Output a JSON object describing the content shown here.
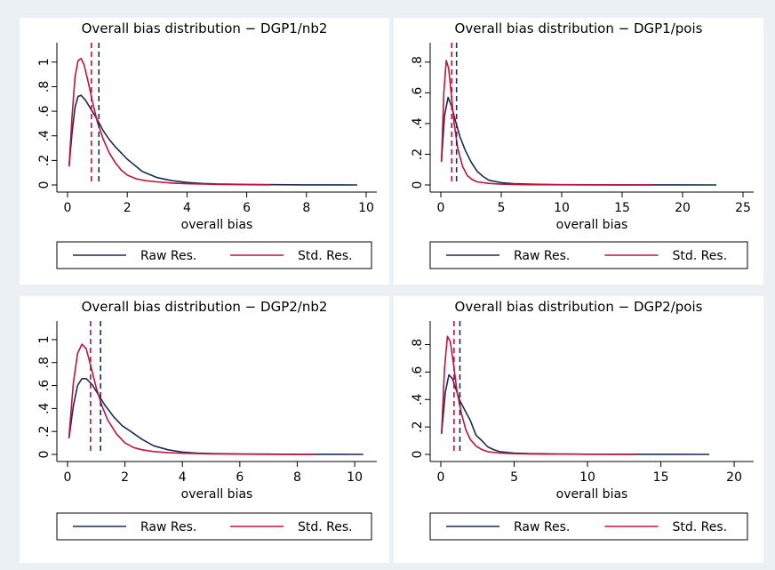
{
  "colors": {
    "raw": "#1a2b57",
    "std": "#c0143c",
    "background": "#eaf0f4",
    "plot_background": "#ffffff"
  },
  "chart_data": [
    {
      "type": "line",
      "title": "Overall bias distribution − DGP1/nb2",
      "xlabel": "overall bias",
      "ylabel": "",
      "xlim": [
        0,
        10
      ],
      "ylim": [
        0,
        1.1
      ],
      "xticks": [
        0,
        2,
        4,
        6,
        8,
        10
      ],
      "yticks": [
        0,
        0.2,
        0.4,
        0.6,
        0.8,
        1
      ],
      "ytick_labels": [
        "0",
        ".2",
        ".4",
        ".6",
        ".8",
        "1"
      ],
      "series": [
        {
          "name": "Raw Res.",
          "color": "#1a2b57",
          "x": [
            0.05,
            0.15,
            0.25,
            0.35,
            0.45,
            0.6,
            0.8,
            1.0,
            1.2,
            1.4,
            1.6,
            1.8,
            2.0,
            2.25,
            2.5,
            3.0,
            3.5,
            4.0,
            4.5,
            5.0,
            6.0,
            7.0,
            8.0,
            9.0,
            9.7
          ],
          "y": [
            0.15,
            0.42,
            0.63,
            0.72,
            0.73,
            0.69,
            0.61,
            0.53,
            0.44,
            0.37,
            0.31,
            0.26,
            0.21,
            0.16,
            0.11,
            0.06,
            0.035,
            0.02,
            0.012,
            0.008,
            0.004,
            0.002,
            0.001,
            0.0005,
            0.0003
          ]
        },
        {
          "name": "Std. Res.",
          "color": "#c0143c",
          "x": [
            0.05,
            0.15,
            0.25,
            0.35,
            0.45,
            0.55,
            0.7,
            0.85,
            1.0,
            1.2,
            1.4,
            1.6,
            1.8,
            2.0,
            2.3,
            2.6,
            3.0,
            3.5,
            4.0,
            5.0,
            6.0,
            6.8
          ],
          "y": [
            0.15,
            0.55,
            0.88,
            1.01,
            1.03,
            0.98,
            0.83,
            0.66,
            0.51,
            0.37,
            0.26,
            0.18,
            0.12,
            0.08,
            0.05,
            0.035,
            0.025,
            0.015,
            0.01,
            0.005,
            0.002,
            0.001
          ]
        }
      ],
      "vlines": [
        {
          "x": 0.8,
          "color": "#c0143c"
        },
        {
          "x": 1.05,
          "color": "#1a2b57"
        }
      ],
      "legend": {
        "position": "bottom",
        "entries": [
          "Raw Res.",
          "Std. Res."
        ]
      }
    },
    {
      "type": "line",
      "title": "Overall bias distribution − DGP1/pois",
      "xlabel": "overall bias",
      "ylabel": "",
      "xlim": [
        0,
        25
      ],
      "ylim": [
        0,
        0.88
      ],
      "xticks": [
        0,
        5,
        10,
        15,
        20,
        25
      ],
      "yticks": [
        0,
        0.2,
        0.4,
        0.6,
        0.8
      ],
      "ytick_labels": [
        "0",
        ".2",
        ".4",
        ".6",
        ".8"
      ],
      "series": [
        {
          "name": "Raw Res.",
          "color": "#1a2b57",
          "x": [
            0.05,
            0.3,
            0.6,
            0.9,
            1.2,
            1.6,
            2.0,
            2.5,
            3.0,
            3.5,
            4.0,
            5.0,
            6.0,
            8.0,
            10.0,
            15.0,
            20.0,
            22.8
          ],
          "y": [
            0.15,
            0.45,
            0.57,
            0.51,
            0.42,
            0.31,
            0.23,
            0.15,
            0.09,
            0.055,
            0.03,
            0.015,
            0.008,
            0.004,
            0.002,
            0.0008,
            0.0003,
            0.0002
          ]
        },
        {
          "name": "Std. Res.",
          "color": "#c0143c",
          "x": [
            0.05,
            0.25,
            0.45,
            0.65,
            0.85,
            1.1,
            1.4,
            1.8,
            2.2,
            2.6,
            3.0,
            4.0,
            5.0,
            7.0,
            10.0,
            14.0,
            17.5
          ],
          "y": [
            0.15,
            0.6,
            0.81,
            0.76,
            0.6,
            0.4,
            0.24,
            0.12,
            0.06,
            0.035,
            0.02,
            0.01,
            0.005,
            0.002,
            0.001,
            0.0005,
            0.0003
          ]
        }
      ],
      "vlines": [
        {
          "x": 0.9,
          "color": "#c0143c"
        },
        {
          "x": 1.3,
          "color": "#1a2b57"
        }
      ],
      "legend": {
        "position": "bottom",
        "entries": [
          "Raw Res.",
          "Std. Res."
        ]
      }
    },
    {
      "type": "line",
      "title": "Overall bias distribution − DGP2/nb2",
      "xlabel": "overall bias",
      "ylabel": "",
      "xlim": [
        0,
        10.4
      ],
      "ylim": [
        0,
        1.1
      ],
      "xticks": [
        0,
        2,
        4,
        6,
        8,
        10
      ],
      "yticks": [
        0,
        0.2,
        0.4,
        0.6,
        0.8,
        1
      ],
      "ytick_labels": [
        "0",
        ".2",
        ".4",
        ".6",
        ".8",
        "1"
      ],
      "series": [
        {
          "name": "Raw Res.",
          "color": "#1a2b57",
          "x": [
            0.05,
            0.2,
            0.35,
            0.5,
            0.65,
            0.85,
            1.05,
            1.3,
            1.6,
            1.9,
            2.2,
            2.6,
            3.0,
            3.5,
            4.0,
            4.5,
            5.0,
            6.0,
            7.0,
            8.0,
            9.0,
            10.3
          ],
          "y": [
            0.14,
            0.42,
            0.6,
            0.66,
            0.66,
            0.61,
            0.53,
            0.43,
            0.33,
            0.25,
            0.2,
            0.13,
            0.075,
            0.04,
            0.02,
            0.012,
            0.008,
            0.004,
            0.002,
            0.001,
            0.0006,
            0.0003
          ]
        },
        {
          "name": "Std. Res.",
          "color": "#c0143c",
          "x": [
            0.05,
            0.2,
            0.35,
            0.5,
            0.65,
            0.8,
            1.0,
            1.2,
            1.4,
            1.7,
            2.0,
            2.3,
            2.6,
            3.0,
            3.5,
            4.0,
            5.0,
            6.0,
            7.0,
            8.6
          ],
          "y": [
            0.15,
            0.62,
            0.88,
            0.96,
            0.92,
            0.78,
            0.58,
            0.42,
            0.3,
            0.18,
            0.1,
            0.06,
            0.04,
            0.025,
            0.015,
            0.01,
            0.005,
            0.002,
            0.001,
            0.0005
          ]
        }
      ],
      "vlines": [
        {
          "x": 0.8,
          "color": "#c0143c"
        },
        {
          "x": 1.15,
          "color": "#1a2b57"
        }
      ],
      "legend": {
        "position": "bottom",
        "entries": [
          "Raw Res.",
          "Std. Res."
        ]
      }
    },
    {
      "type": "line",
      "title": "Overall bias distribution − DGP2/pois",
      "xlabel": "overall bias",
      "ylabel": "",
      "xlim": [
        0,
        20.6
      ],
      "ylim": [
        0,
        0.92
      ],
      "xticks": [
        0,
        5,
        10,
        15,
        20
      ],
      "yticks": [
        0,
        0.2,
        0.4,
        0.6,
        0.8
      ],
      "ytick_labels": [
        "0",
        ".2",
        ".4",
        ".6",
        ".8"
      ],
      "series": [
        {
          "name": "Raw Res.",
          "color": "#1a2b57",
          "x": [
            0.05,
            0.3,
            0.55,
            0.8,
            1.05,
            1.3,
            1.6,
            2.0,
            2.4,
            2.8,
            3.2,
            3.6,
            4.0,
            5.0,
            6.0,
            8.0,
            10.0,
            14.0,
            18.3
          ],
          "y": [
            0.15,
            0.45,
            0.58,
            0.55,
            0.47,
            0.39,
            0.33,
            0.25,
            0.14,
            0.1,
            0.055,
            0.035,
            0.02,
            0.01,
            0.006,
            0.003,
            0.0015,
            0.0005,
            0.0002
          ]
        },
        {
          "name": "Std. Res.",
          "color": "#c0143c",
          "x": [
            0.05,
            0.25,
            0.45,
            0.65,
            0.85,
            1.1,
            1.4,
            1.7,
            2.0,
            2.4,
            2.8,
            3.2,
            4.0,
            5.0,
            7.0,
            10.0,
            13.3
          ],
          "y": [
            0.15,
            0.62,
            0.86,
            0.82,
            0.67,
            0.46,
            0.3,
            0.18,
            0.11,
            0.06,
            0.035,
            0.02,
            0.01,
            0.005,
            0.002,
            0.001,
            0.0005
          ]
        }
      ],
      "vlines": [
        {
          "x": 0.9,
          "color": "#c0143c"
        },
        {
          "x": 1.3,
          "color": "#1a2b57"
        }
      ],
      "legend": {
        "position": "bottom",
        "entries": [
          "Raw Res.",
          "Std. Res."
        ]
      }
    }
  ]
}
